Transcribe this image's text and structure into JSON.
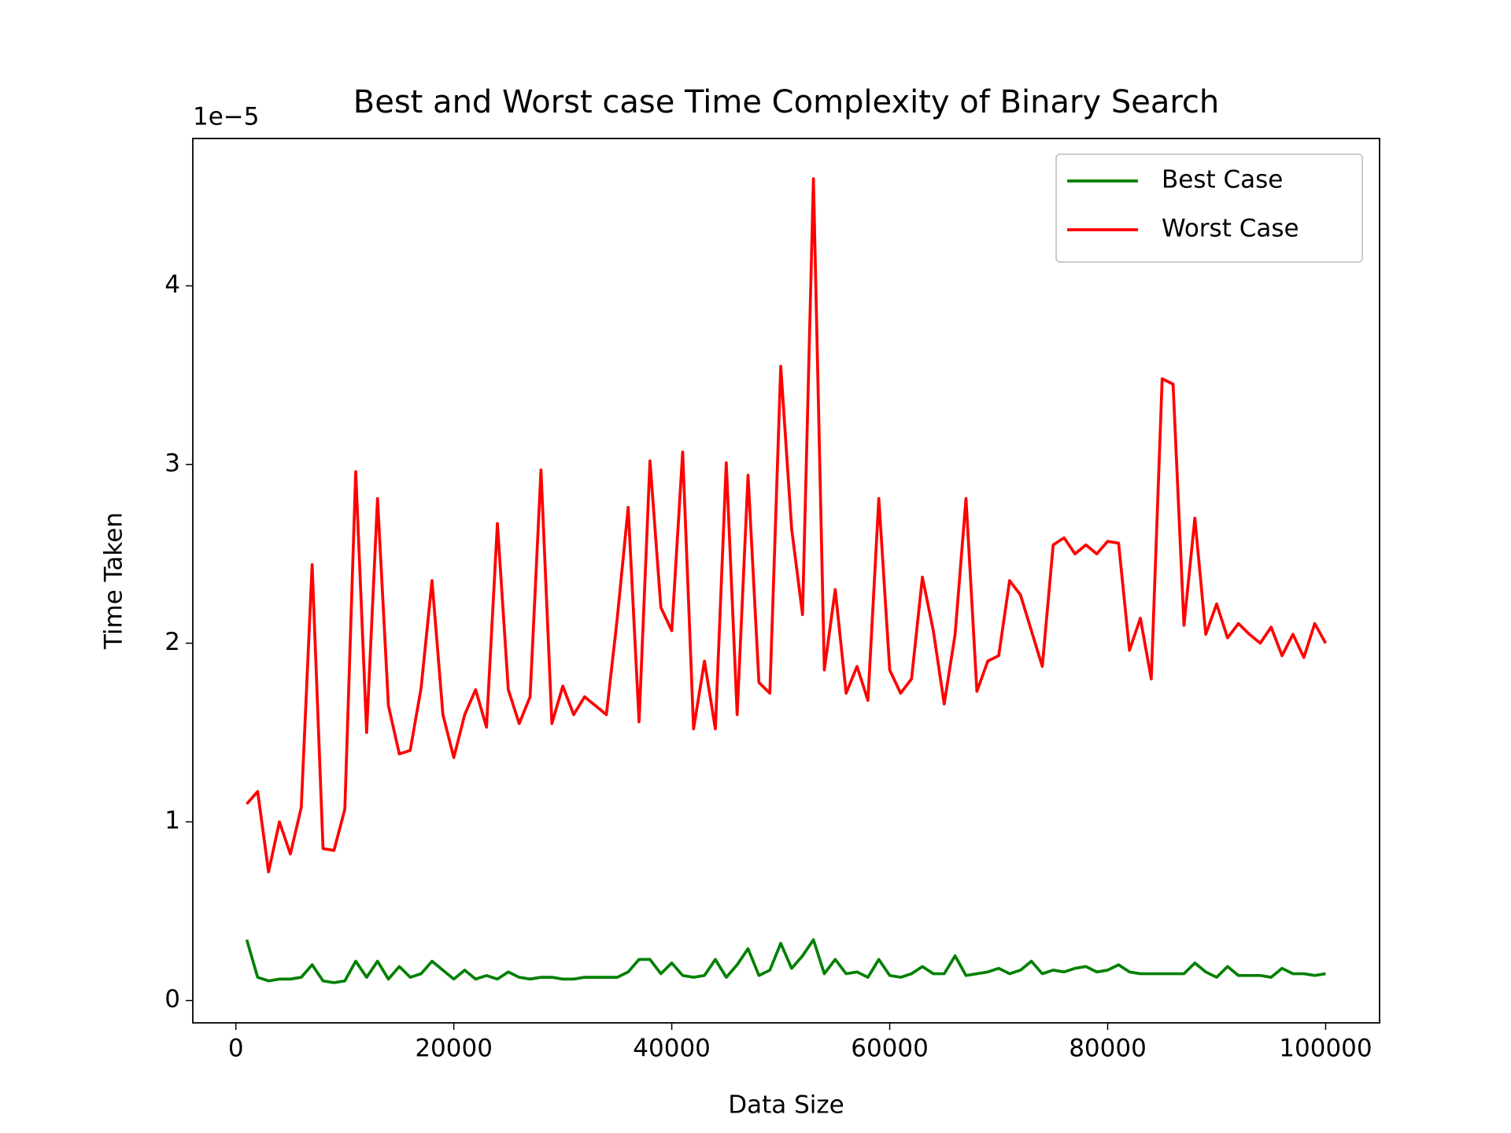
{
  "chart_data": {
    "type": "line",
    "title": "Best and Worst case Time Complexity of Binary Search",
    "xlabel": "Data Size",
    "ylabel": "Time Taken",
    "y_offset_label": "1e−5",
    "x": [
      1000,
      2000,
      3000,
      4000,
      5000,
      6000,
      7000,
      8000,
      9000,
      10000,
      11000,
      12000,
      13000,
      14000,
      15000,
      16000,
      17000,
      18000,
      19000,
      20000,
      21000,
      22000,
      23000,
      24000,
      25000,
      26000,
      27000,
      28000,
      29000,
      30000,
      31000,
      32000,
      33000,
      34000,
      35000,
      36000,
      37000,
      38000,
      39000,
      40000,
      41000,
      42000,
      43000,
      44000,
      45000,
      46000,
      47000,
      48000,
      49000,
      50000,
      51000,
      52000,
      53000,
      54000,
      55000,
      56000,
      57000,
      58000,
      59000,
      60000,
      61000,
      62000,
      63000,
      64000,
      65000,
      66000,
      67000,
      68000,
      69000,
      70000,
      71000,
      72000,
      73000,
      74000,
      75000,
      76000,
      77000,
      78000,
      79000,
      80000,
      81000,
      82000,
      83000,
      84000,
      85000,
      86000,
      87000,
      88000,
      89000,
      90000,
      91000,
      92000,
      93000,
      94000,
      95000,
      96000,
      97000,
      98000,
      99000,
      100000
    ],
    "series": [
      {
        "name": "Best Case",
        "color": "#008000",
        "values": [
          0.34,
          0.13,
          0.11,
          0.12,
          0.12,
          0.13,
          0.2,
          0.11,
          0.1,
          0.11,
          0.22,
          0.13,
          0.22,
          0.12,
          0.19,
          0.13,
          0.15,
          0.22,
          0.17,
          0.12,
          0.17,
          0.12,
          0.14,
          0.12,
          0.16,
          0.13,
          0.12,
          0.13,
          0.13,
          0.12,
          0.12,
          0.13,
          0.13,
          0.13,
          0.13,
          0.16,
          0.23,
          0.23,
          0.15,
          0.21,
          0.14,
          0.13,
          0.14,
          0.23,
          0.13,
          0.2,
          0.29,
          0.14,
          0.17,
          0.32,
          0.18,
          0.25,
          0.34,
          0.15,
          0.23,
          0.15,
          0.16,
          0.13,
          0.23,
          0.14,
          0.13,
          0.15,
          0.19,
          0.15,
          0.15,
          0.25,
          0.14,
          0.15,
          0.16,
          0.18,
          0.15,
          0.17,
          0.22,
          0.15,
          0.17,
          0.16,
          0.18,
          0.19,
          0.16,
          0.17,
          0.2,
          0.16,
          0.15,
          0.15,
          0.15,
          0.15,
          0.15,
          0.21,
          0.16,
          0.13,
          0.19,
          0.14,
          0.14,
          0.14,
          0.13,
          0.18,
          0.15,
          0.15,
          0.14,
          0.15
        ]
      },
      {
        "name": "Worst Case",
        "color": "#ff0000",
        "values": [
          1.1,
          1.17,
          0.72,
          1.0,
          0.82,
          1.08,
          2.44,
          0.85,
          0.84,
          1.07,
          2.96,
          1.5,
          2.81,
          1.65,
          1.38,
          1.4,
          1.75,
          2.35,
          1.6,
          1.36,
          1.6,
          1.74,
          1.53,
          2.67,
          1.74,
          1.55,
          1.7,
          2.97,
          1.55,
          1.76,
          1.6,
          1.7,
          1.65,
          1.6,
          2.14,
          2.76,
          1.56,
          3.02,
          2.2,
          2.07,
          3.07,
          1.52,
          1.9,
          1.52,
          3.01,
          1.6,
          2.94,
          1.78,
          1.72,
          3.55,
          2.64,
          2.16,
          4.6,
          1.85,
          2.3,
          1.72,
          1.87,
          1.68,
          2.81,
          1.85,
          1.72,
          1.8,
          2.37,
          2.07,
          1.66,
          2.05,
          2.81,
          1.73,
          1.9,
          1.93,
          2.35,
          2.27,
          2.07,
          1.87,
          2.55,
          2.59,
          2.5,
          2.55,
          2.5,
          2.57,
          2.56,
          1.96,
          2.14,
          1.8,
          3.48,
          3.45,
          2.1,
          2.7,
          2.05,
          2.22,
          2.03,
          2.11,
          2.05,
          2.0,
          2.09,
          1.93,
          2.05,
          1.92,
          2.11,
          2.0
        ]
      }
    ],
    "xlim": [
      -3950,
      104950
    ],
    "ylim": [
      -0.125,
      4.825
    ],
    "xticks": [
      0,
      20000,
      40000,
      60000,
      80000,
      100000
    ],
    "yticks": [
      0,
      1,
      2,
      3,
      4
    ],
    "legend": "upper right"
  }
}
